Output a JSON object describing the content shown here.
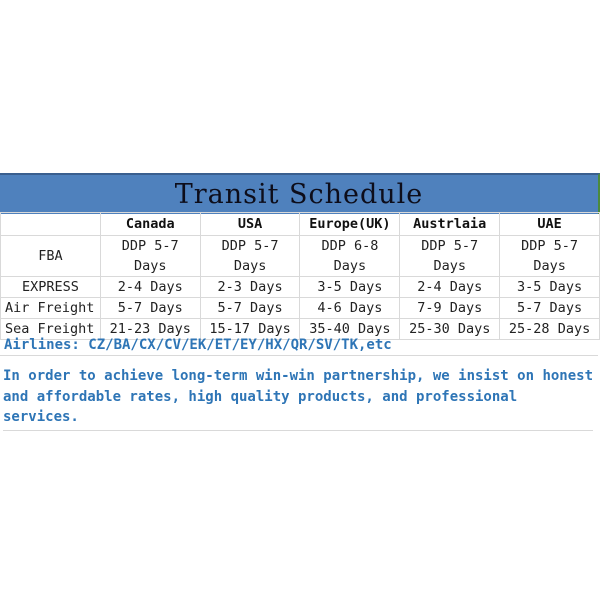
{
  "title": "Transit Schedule",
  "columns": [
    "",
    "Canada",
    "USA",
    "Europe(UK)",
    "Austrlaia",
    "UAE"
  ],
  "rows": [
    {
      "label": "FBA",
      "values": [
        "DDP 5-7 Days",
        "DDP 5-7 Days",
        "DDP 6-8 Days",
        "DDP 5-7 Days",
        "DDP 5-7 Days"
      ]
    },
    {
      "label": "EXPRESS",
      "values": [
        "2-4 Days",
        "2-3 Days",
        "3-5 Days",
        "2-4 Days",
        "3-5 Days"
      ]
    },
    {
      "label": "Air Freight",
      "values": [
        "5-7 Days",
        "5-7 Days",
        "4-6 Days",
        "7-9 Days",
        "5-7 Days"
      ]
    },
    {
      "label": "Sea Freight",
      "values": [
        "21-23 Days",
        "15-17 Days",
        "35-40 Days",
        "25-30 Days",
        "25-28 Days"
      ]
    }
  ],
  "airlines": "Airlines: CZ/BA/CX/CV/EK/ET/EY/HX/QR/SV/TK,etc",
  "note": "In order to achieve long-term win-win partnership, we insist on honest and affordable rates, high quality products, and professional services.",
  "colors": {
    "banner": "#4f81bd",
    "text_blue": "#2e75b6"
  }
}
